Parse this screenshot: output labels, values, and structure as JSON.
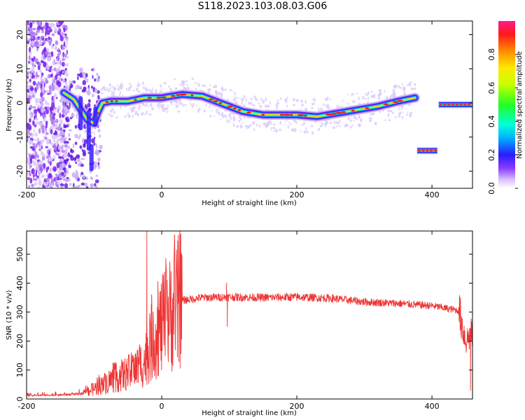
{
  "title": "S118.2023.103.08.03.G06",
  "chart_data": [
    {
      "type": "heatmap",
      "xlabel": "Height of straight line (km)",
      "ylabel": "Frequency (Hz)",
      "xlim": [
        -200,
        460
      ],
      "ylim": [
        -25,
        24
      ],
      "xticks": [
        -200,
        0,
        200,
        400
      ],
      "yticks": [
        -20,
        -10,
        0,
        10,
        20
      ],
      "colorbar": {
        "label": "Normalized spectral amplitude",
        "range": [
          0,
          1
        ],
        "ticks": [
          0.0,
          0.2,
          0.4,
          0.6,
          0.8
        ],
        "tick_labels": [
          "0.0",
          "0.2",
          "0.4",
          "0.6",
          "0.8"
        ]
      },
      "ridge": [
        {
          "x": -145,
          "y": 3
        },
        {
          "x": -130,
          "y": 1
        },
        {
          "x": -120,
          "y": -2
        },
        {
          "x": -110,
          "y": -5
        },
        {
          "x": -100,
          "y": -6
        },
        {
          "x": -95,
          "y": -3
        },
        {
          "x": -88,
          "y": 0
        },
        {
          "x": -75,
          "y": 0.5
        },
        {
          "x": -50,
          "y": 0.5
        },
        {
          "x": -25,
          "y": 1.5
        },
        {
          "x": 0,
          "y": 1.5
        },
        {
          "x": 30,
          "y": 2.5
        },
        {
          "x": 60,
          "y": 2
        },
        {
          "x": 80,
          "y": 0.5
        },
        {
          "x": 100,
          "y": -1
        },
        {
          "x": 120,
          "y": -2.5
        },
        {
          "x": 150,
          "y": -3.5
        },
        {
          "x": 180,
          "y": -3.5
        },
        {
          "x": 200,
          "y": -3.5
        },
        {
          "x": 230,
          "y": -4
        },
        {
          "x": 260,
          "y": -3
        },
        {
          "x": 290,
          "y": -2
        },
        {
          "x": 320,
          "y": -1
        },
        {
          "x": 350,
          "y": 0.5
        },
        {
          "x": 375,
          "y": 1.5
        }
      ],
      "segments": [
        {
          "x0": 378,
          "x1": 408,
          "y": -14
        },
        {
          "x0": 410,
          "x1": 460,
          "y": -0.5
        }
      ]
    },
    {
      "type": "line",
      "xlabel": "Height of straight line (km)",
      "ylabel": "SNR (10 * v/v)",
      "xlim": [
        -200,
        460
      ],
      "ylim": [
        0,
        580
      ],
      "xticks": [
        -200,
        0,
        200,
        400
      ],
      "yticks": [
        0,
        100,
        200,
        300,
        400,
        500
      ],
      "color": "#ee3333",
      "envelope": [
        {
          "x": -200,
          "y": 12
        },
        {
          "x": -150,
          "y": 14
        },
        {
          "x": -120,
          "y": 18
        },
        {
          "x": -100,
          "y": 35
        },
        {
          "x": -80,
          "y": 60
        },
        {
          "x": -60,
          "y": 80
        },
        {
          "x": -40,
          "y": 100
        },
        {
          "x": -25,
          "y": 130
        },
        {
          "x": -15,
          "y": 200
        },
        {
          "x": 0,
          "y": 250
        },
        {
          "x": 15,
          "y": 300
        },
        {
          "x": 30,
          "y": 340
        },
        {
          "x": 60,
          "y": 350
        },
        {
          "x": 100,
          "y": 352
        },
        {
          "x": 150,
          "y": 350
        },
        {
          "x": 200,
          "y": 352
        },
        {
          "x": 250,
          "y": 348
        },
        {
          "x": 300,
          "y": 335
        },
        {
          "x": 350,
          "y": 330
        },
        {
          "x": 380,
          "y": 325
        },
        {
          "x": 400,
          "y": 322
        },
        {
          "x": 440,
          "y": 305
        },
        {
          "x": 450,
          "y": 200
        },
        {
          "x": 460,
          "y": 230
        }
      ],
      "spikes": [
        {
          "x": -22,
          "y": 578
        },
        {
          "x": -15,
          "y": 360
        },
        {
          "x": 96,
          "y": 400
        },
        {
          "x": 97,
          "y": 250
        },
        {
          "x": 457,
          "y": 30
        }
      ]
    }
  ]
}
